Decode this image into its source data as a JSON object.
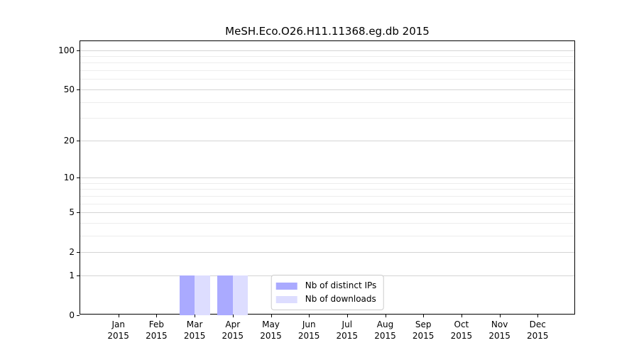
{
  "chart_data": {
    "type": "bar",
    "title": "MeSH.Eco.O26.H11.11368.eg.db 2015",
    "categories": [
      {
        "label": "Jan",
        "sublabel": "2015"
      },
      {
        "label": "Feb",
        "sublabel": "2015"
      },
      {
        "label": "Mar",
        "sublabel": "2015"
      },
      {
        "label": "Apr",
        "sublabel": "2015"
      },
      {
        "label": "May",
        "sublabel": "2015"
      },
      {
        "label": "Jun",
        "sublabel": "2015"
      },
      {
        "label": "Jul",
        "sublabel": "2015"
      },
      {
        "label": "Aug",
        "sublabel": "2015"
      },
      {
        "label": "Sep",
        "sublabel": "2015"
      },
      {
        "label": "Oct",
        "sublabel": "2015"
      },
      {
        "label": "Nov",
        "sublabel": "2015"
      },
      {
        "label": "Dec",
        "sublabel": "2015"
      }
    ],
    "series": [
      {
        "name": "Nb of distinct IPs",
        "color": "#aaaaff",
        "values": [
          0,
          0,
          1,
          1,
          0,
          0,
          0,
          0,
          0,
          0,
          0,
          0
        ]
      },
      {
        "name": "Nb of downloads",
        "color": "#ddddff",
        "values": [
          0,
          0,
          1,
          1,
          0,
          0,
          0,
          0,
          0,
          0,
          0,
          0
        ]
      }
    ],
    "xlabel": "",
    "ylabel": "",
    "yscale": "log1p",
    "ylim": [
      0,
      117
    ],
    "yticks_major": [
      0,
      1,
      2,
      5,
      10,
      20,
      50,
      100
    ],
    "yticks_minor": [
      3,
      4,
      6,
      7,
      8,
      9,
      30,
      40,
      60,
      70,
      80,
      90
    ],
    "grid": true,
    "legend_position": "lower center"
  },
  "colors": {
    "major_grid": "#d4d4d4",
    "minor_grid": "#ededed",
    "spine": "#000000",
    "legend_border": "#cccccc",
    "background": "#ffffff"
  }
}
